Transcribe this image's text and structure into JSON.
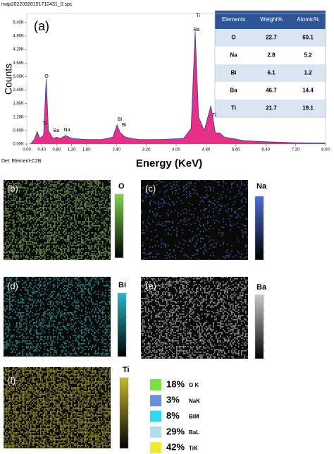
{
  "file_name": "map20220328151710431_0.spc",
  "chart_data": {
    "type": "area",
    "panel_label": "(a)",
    "x_label": "Energy (KeV)",
    "y_label": "Counts",
    "footer": "Det: Element-C2B",
    "x": [
      0.1,
      0.2,
      0.28,
      0.35,
      0.45,
      0.52,
      0.58,
      0.7,
      0.8,
      0.9,
      1.04,
      1.2,
      1.6,
      2.0,
      2.3,
      2.42,
      2.5,
      2.65,
      3.0,
      3.6,
      4.2,
      4.4,
      4.51,
      4.6,
      4.75,
      4.93,
      5.05,
      5.16,
      5.3,
      5.5,
      5.8,
      6.4,
      7.2,
      8.0
    ],
    "values": [
      0,
      200,
      550,
      250,
      400,
      2900,
      600,
      250,
      300,
      250,
      380,
      250,
      200,
      200,
      300,
      850,
      500,
      300,
      200,
      200,
      250,
      700,
      5000,
      1200,
      600,
      1700,
      500,
      500,
      300,
      250,
      150,
      100,
      60,
      40
    ],
    "color": "#e8187a",
    "line_color": "#2a3f9a",
    "peak_labels": [
      "O",
      "Ti",
      "Ba",
      "Na",
      "Bi",
      "Bi",
      "Ti",
      "Ba",
      "Ti"
    ],
    "xlim": [
      0,
      8
    ],
    "xticks": [
      {
        "value": 0,
        "label": "0.00"
      },
      {
        "value": 0.4,
        "label": "0.40"
      },
      {
        "value": 0.8,
        "label": "0.80"
      },
      {
        "value": 1.2,
        "label": "1.20"
      },
      {
        "value": 1.6,
        "label": "1.60"
      },
      {
        "value": 2.4,
        "label": "2.40"
      },
      {
        "value": 3.2,
        "label": "3.20"
      },
      {
        "value": 4,
        "label": "4.00"
      },
      {
        "value": 4.8,
        "label": "4.80"
      },
      {
        "value": 5.6,
        "label": "5.60"
      },
      {
        "value": 6.4,
        "label": "6.40"
      },
      {
        "value": 7.2,
        "label": "7.20"
      },
      {
        "value": 8,
        "label": "8.00"
      }
    ],
    "ylim": [
      0,
      5800
    ],
    "yticks": [
      {
        "value": 0,
        "label": "0.00K"
      },
      {
        "value": 600,
        "label": "0.60K"
      },
      {
        "value": 1200,
        "label": "1.20K"
      },
      {
        "value": 1800,
        "label": "1.80K"
      },
      {
        "value": 2400,
        "label": "2.40K"
      },
      {
        "value": 3000,
        "label": "3.00K"
      },
      {
        "value": 3600,
        "label": "3.60K"
      },
      {
        "value": 4200,
        "label": "4.20K"
      },
      {
        "value": 4800,
        "label": "4.80K"
      },
      {
        "value": 5400,
        "label": "5.40K"
      }
    ]
  },
  "table": {
    "columns": [
      "Elements",
      "Weight%",
      "Atomic%"
    ],
    "rows": [
      [
        "O",
        22.7,
        60.1
      ],
      [
        "Na",
        2.8,
        5.2
      ],
      [
        "Bi",
        6.1,
        1.2
      ],
      [
        "Ba",
        46.7,
        14.4
      ],
      [
        "Ti",
        21.7,
        19.1
      ]
    ]
  },
  "maps": [
    {
      "panel": "(b)",
      "element": "O",
      "color": "#7fd44a"
    },
    {
      "panel": "(c)",
      "element": "Na",
      "color": "#4a6fd6"
    },
    {
      "panel": "(d)",
      "element": "Bi",
      "color": "#2ab8c8"
    },
    {
      "panel": "(e)",
      "element": "Ba",
      "color": "#c8c8c8"
    },
    {
      "panel": "(f)",
      "element": "Ti",
      "color": "#c8b830"
    }
  ],
  "legend": [
    {
      "percent": "18%",
      "name": "O K",
      "color": "#7ee040"
    },
    {
      "percent": "3%",
      "name": "NaK",
      "color": "#6a8fe0"
    },
    {
      "percent": "8%",
      "name": "BiM",
      "color": "#30d8e8"
    },
    {
      "percent": "29%",
      "name": "BaL",
      "color": "#b4dcea"
    },
    {
      "percent": "42%",
      "name": "TiK",
      "color": "#f0e830"
    }
  ]
}
